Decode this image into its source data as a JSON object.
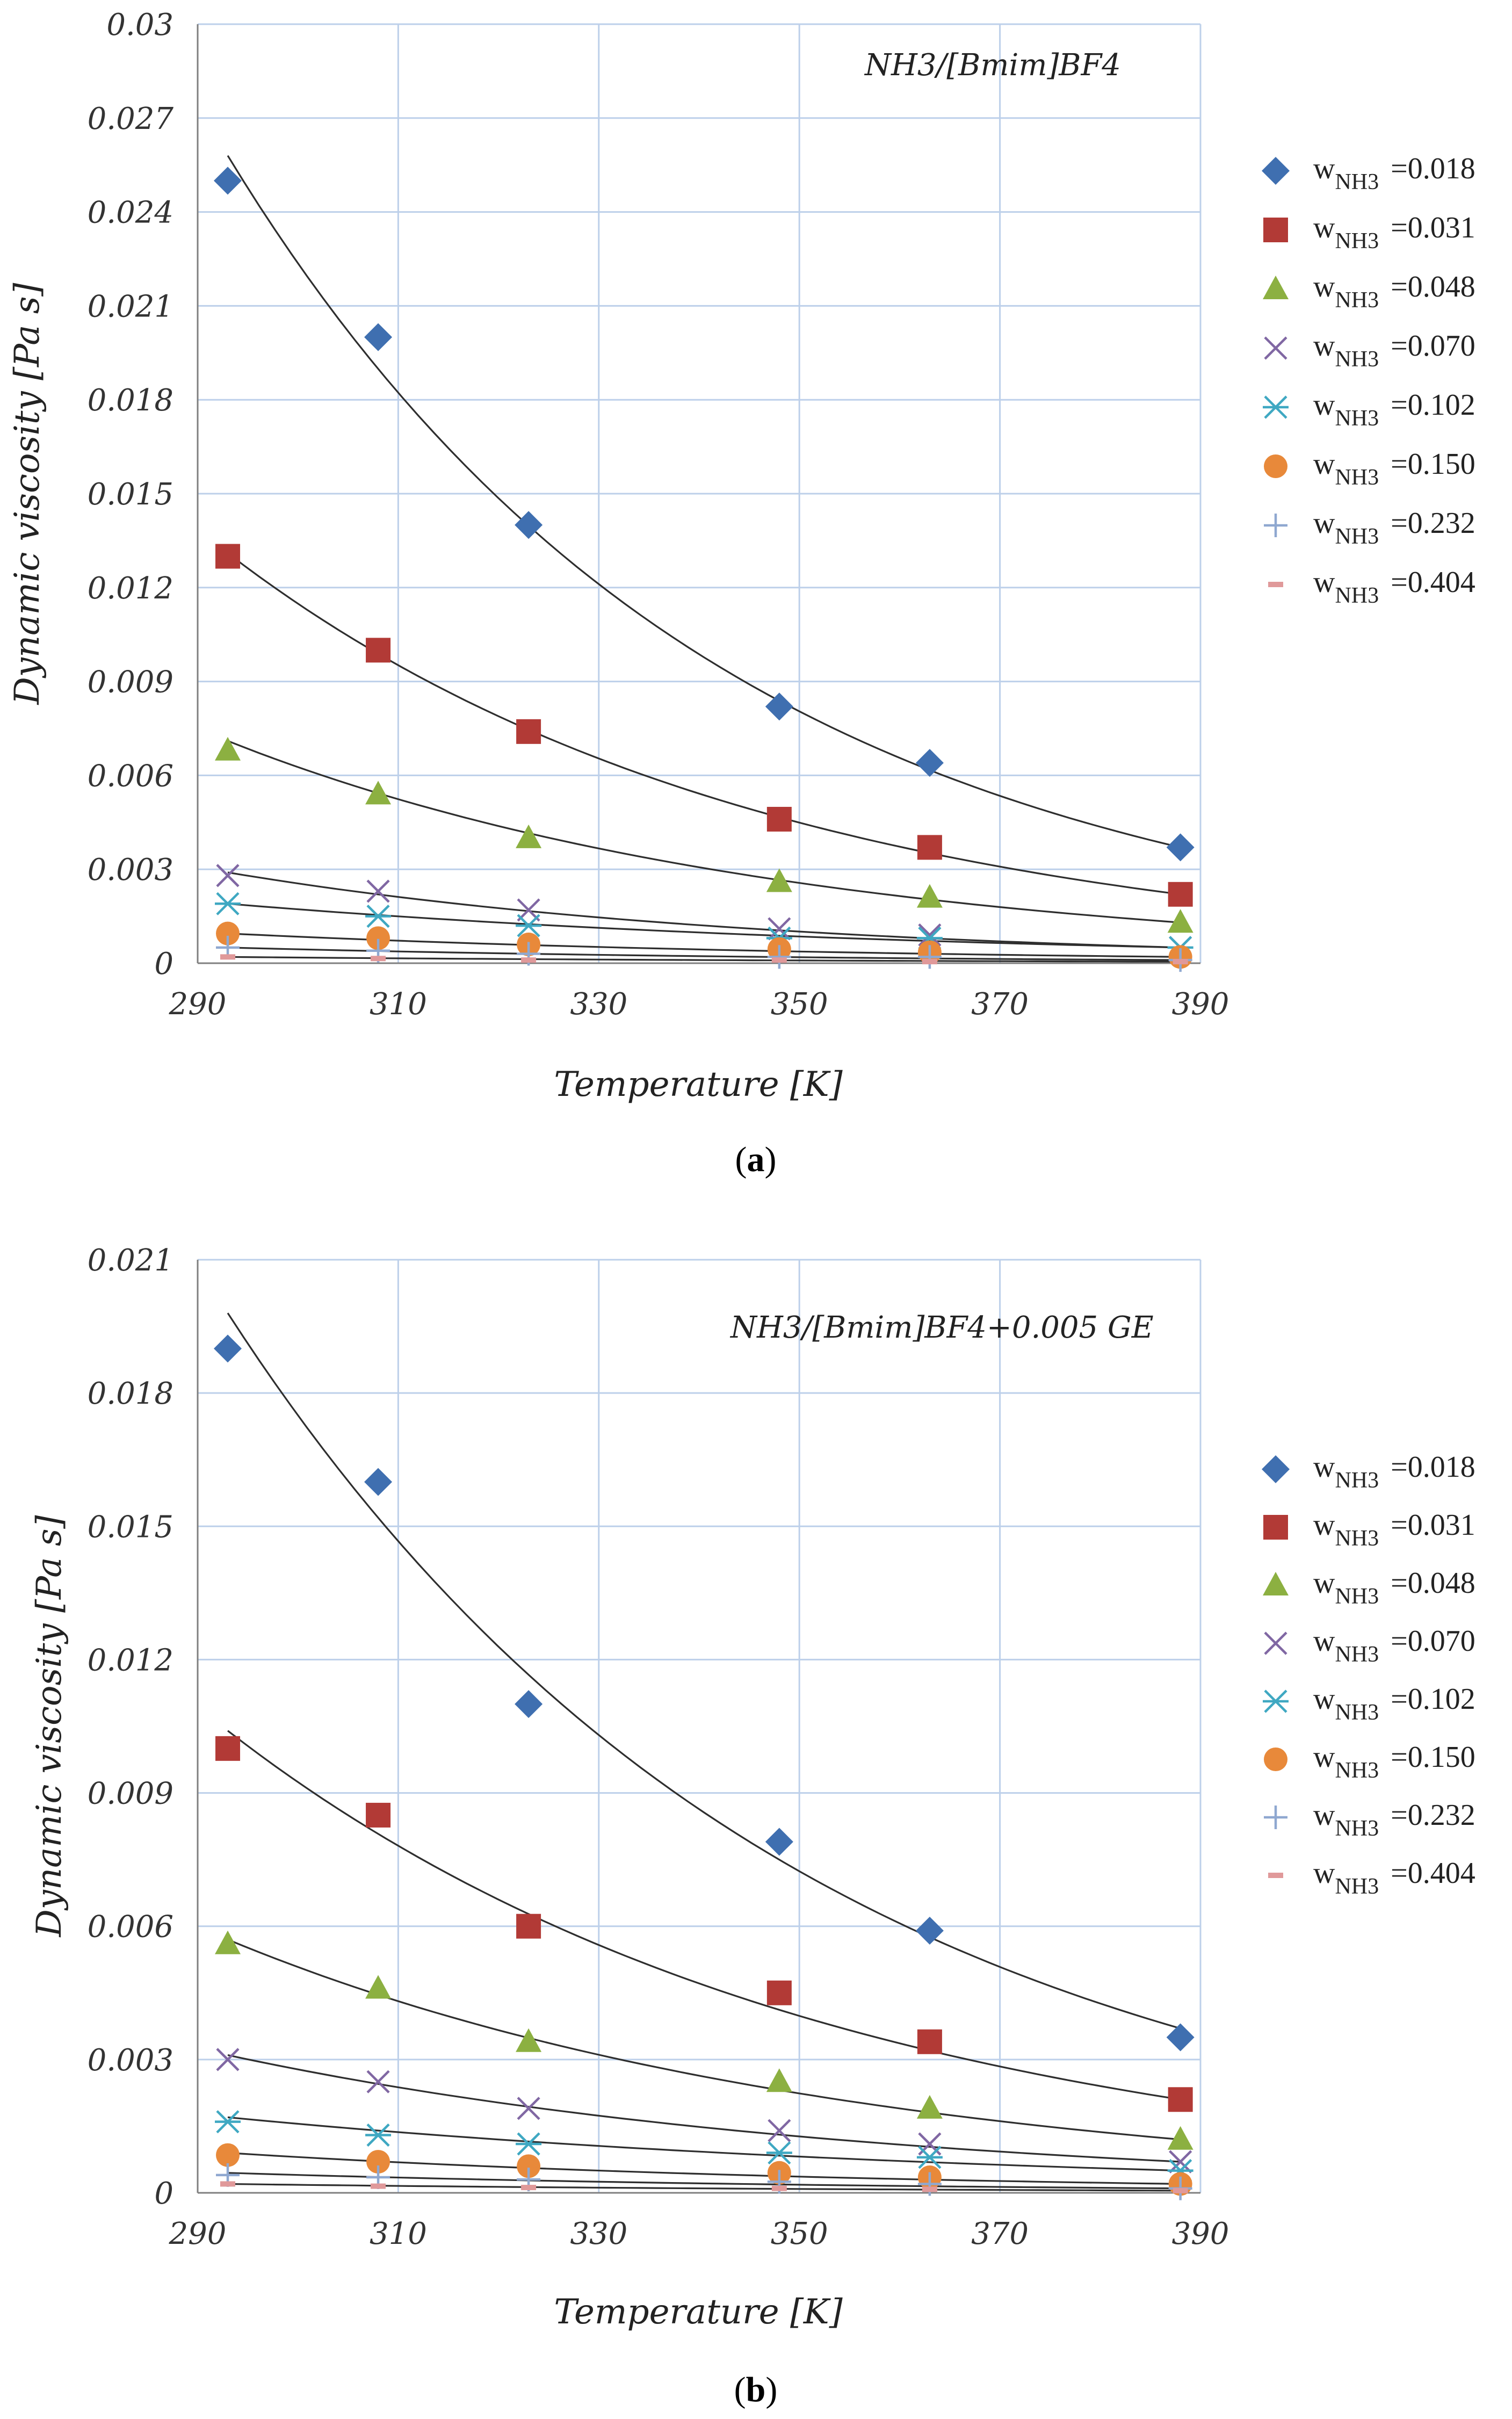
{
  "colors": {
    "s1": "#3F6FB0",
    "s2": "#B23A36",
    "s3": "#8CB041",
    "s4": "#8067A3",
    "s5": "#3FA8C2",
    "s6": "#E8893A",
    "s7": "#8FA8D0",
    "s8": "#E0999A",
    "grid": "#BDD0EA",
    "fit": "#2E2E2E"
  },
  "chart_data": [
    {
      "type": "scatter",
      "panel_label": "NH3/[Bmim]BF4",
      "caption": {
        "open": "(",
        "letter": "a",
        "close": ")"
      },
      "xlabel": "Temperature [K]",
      "ylabel": "Dynamic viscosity [Pa s]",
      "xlim": [
        290,
        390
      ],
      "ylim": [
        0,
        0.03
      ],
      "x_ticks": [
        "290",
        "310",
        "330",
        "350",
        "370",
        "390"
      ],
      "y_ticks": [
        "0",
        "0.003",
        "0.006",
        "0.009",
        "0.012",
        "0.015",
        "0.018",
        "0.021",
        "0.024",
        "0.027",
        "0.03"
      ],
      "x": [
        293,
        308,
        323,
        348,
        363,
        388
      ],
      "fit_lines": true,
      "series": [
        {
          "name": "w_NH3 =0.018",
          "sub": "NH3",
          "value": "=0.018",
          "marker": "diamond",
          "color": "s1",
          "values": [
            0.025,
            0.02,
            0.014,
            0.0082,
            0.0064,
            0.0037
          ],
          "fit": [
            0.0258,
            0.0037
          ]
        },
        {
          "name": "w_NH3 =0.031",
          "sub": "NH3",
          "value": "=0.031",
          "marker": "square",
          "color": "s2",
          "values": [
            0.013,
            0.01,
            0.0074,
            0.0046,
            0.0037,
            0.0022
          ],
          "fit": [
            0.0131,
            0.0022
          ]
        },
        {
          "name": "w_NH3 =0.048",
          "sub": "NH3",
          "value": "=0.048",
          "marker": "triangle",
          "color": "s3",
          "values": [
            0.0068,
            0.0054,
            0.004,
            0.0026,
            0.0021,
            0.0013
          ],
          "fit": [
            0.0071,
            0.0013
          ]
        },
        {
          "name": "w_NH3 =0.070",
          "sub": "NH3",
          "value": "=0.070",
          "marker": "x",
          "color": "s4",
          "values": [
            0.0028,
            0.0023,
            0.0017,
            0.0011,
            0.0009,
            0.0005
          ],
          "fit": [
            0.0029,
            0.0005
          ]
        },
        {
          "name": "w_NH3 =0.102",
          "sub": "NH3",
          "value": "=0.102",
          "marker": "asterisk",
          "color": "s5",
          "values": [
            0.0019,
            0.0015,
            0.0012,
            0.0008,
            0.0008,
            0.0005
          ],
          "fit": [
            0.0019,
            0.0005
          ]
        },
        {
          "name": "w_NH3 =0.150",
          "sub": "NH3",
          "value": "=0.150",
          "marker": "circle",
          "color": "s6",
          "values": [
            0.00095,
            0.0008,
            0.0006,
            0.00045,
            0.00035,
            0.0002
          ],
          "fit": [
            0.00095,
            0.0002
          ]
        },
        {
          "name": "w_NH3 =0.232",
          "sub": "NH3",
          "value": "=0.232",
          "marker": "plus",
          "color": "s7",
          "values": [
            0.0005,
            0.0004,
            0.0003,
            0.0002,
            0.0002,
            0.0001
          ],
          "fit": [
            0.0005,
            0.0001
          ]
        },
        {
          "name": "w_NH3 =0.404",
          "sub": "NH3",
          "value": "=0.404",
          "marker": "dash",
          "color": "s8",
          "values": [
            0.0002,
            0.00015,
            0.0001,
            0.0001,
            5e-05,
            5e-05
          ],
          "fit": [
            0.0002,
            5e-05
          ]
        }
      ]
    },
    {
      "type": "scatter",
      "panel_label": "NH3/[Bmim]BF4+0.005 GE",
      "caption": {
        "open": "(",
        "letter": "b",
        "close": ")"
      },
      "xlabel": "Temperature [K]",
      "ylabel": "Dynamic viscosity [Pa s]",
      "xlim": [
        290,
        390
      ],
      "ylim": [
        0,
        0.021
      ],
      "x_ticks": [
        "290",
        "310",
        "330",
        "350",
        "370",
        "390"
      ],
      "y_ticks": [
        "0",
        "0.003",
        "0.006",
        "0.009",
        "0.012",
        "0.015",
        "0.018",
        "0.021"
      ],
      "x": [
        293,
        308,
        323,
        348,
        363,
        388
      ],
      "fit_lines": true,
      "series": [
        {
          "name": "w_NH3 =0.018",
          "sub": "NH3",
          "value": "=0.018",
          "marker": "diamond",
          "color": "s1",
          "values": [
            0.019,
            0.016,
            0.011,
            0.0079,
            0.0059,
            0.0035
          ],
          "fit": [
            0.0198,
            0.0037
          ]
        },
        {
          "name": "w_NH3 =0.031",
          "sub": "NH3",
          "value": "=0.031",
          "marker": "square",
          "color": "s2",
          "values": [
            0.01,
            0.0085,
            0.006,
            0.0045,
            0.0034,
            0.0021
          ],
          "fit": [
            0.0104,
            0.0021
          ]
        },
        {
          "name": "w_NH3 =0.048",
          "sub": "NH3",
          "value": "=0.048",
          "marker": "triangle",
          "color": "s3",
          "values": [
            0.0056,
            0.0046,
            0.0034,
            0.0025,
            0.0019,
            0.0012
          ],
          "fit": [
            0.0057,
            0.0012
          ]
        },
        {
          "name": "w_NH3 =0.070",
          "sub": "NH3",
          "value": "=0.070",
          "marker": "x",
          "color": "s4",
          "values": [
            0.003,
            0.0025,
            0.0019,
            0.0014,
            0.0011,
            0.0007
          ],
          "fit": [
            0.0031,
            0.0007
          ]
        },
        {
          "name": "w_NH3 =0.102",
          "sub": "NH3",
          "value": "=0.102",
          "marker": "asterisk",
          "color": "s5",
          "values": [
            0.0016,
            0.0013,
            0.0011,
            0.0009,
            0.0008,
            0.0005
          ],
          "fit": [
            0.0017,
            0.0005
          ]
        },
        {
          "name": "w_NH3 =0.150",
          "sub": "NH3",
          "value": "=0.150",
          "marker": "circle",
          "color": "s6",
          "values": [
            0.00085,
            0.0007,
            0.0006,
            0.00045,
            0.00035,
            0.0002
          ],
          "fit": [
            0.0009,
            0.0002
          ]
        },
        {
          "name": "w_NH3 =0.232",
          "sub": "NH3",
          "value": "=0.232",
          "marker": "plus",
          "color": "s7",
          "values": [
            0.0004,
            0.00035,
            0.0003,
            0.00025,
            0.0002,
            0.0001
          ],
          "fit": [
            0.00045,
            0.0001
          ]
        },
        {
          "name": "w_NH3 =0.404",
          "sub": "NH3",
          "value": "=0.404",
          "marker": "dash",
          "color": "s8",
          "values": [
            0.0002,
            0.00015,
            0.00012,
            0.0001,
            8e-05,
            5e-05
          ],
          "fit": [
            0.0002,
            5e-05
          ]
        }
      ]
    }
  ]
}
